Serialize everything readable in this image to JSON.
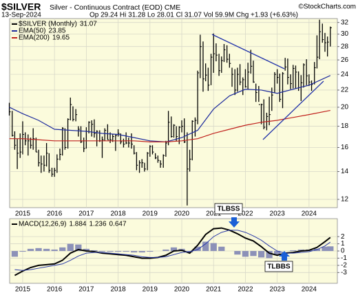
{
  "chart_data": [
    {
      "type": "ohlc",
      "title": "$SILVER",
      "subtitle": "Silver - Continuous Contract (EOD) CME",
      "date": "13-Sep-2024",
      "quote": "Op 29.24 Hi 31.28 Lo 28.01 Cl 31.07 Vol 59.9M Chg +1.93 (+6.63%)",
      "source": "©StockCharts.com",
      "log_scale": true,
      "grid": true,
      "legend": "top-left",
      "xlim": [
        2014.59,
        2024.89
      ],
      "xticks": [
        2015,
        2016,
        2017,
        2018,
        2019,
        2020,
        2021,
        2022,
        2023,
        2024
      ],
      "ylim": [
        11.46,
        32.7
      ],
      "yticks": [
        12,
        14,
        16,
        18,
        20,
        22,
        24,
        26,
        28,
        30,
        32
      ],
      "bars": {
        "name": "$SILVER (Monthly)",
        "color": "#000000",
        "x": [
          2014.58,
          2014.67,
          2014.75,
          2014.83,
          2014.92,
          2015,
          2015.08,
          2015.17,
          2015.25,
          2015.33,
          2015.42,
          2015.5,
          2015.58,
          2015.67,
          2015.75,
          2015.83,
          2015.92,
          2016,
          2016.08,
          2016.17,
          2016.25,
          2016.33,
          2016.42,
          2016.5,
          2016.58,
          2016.67,
          2016.75,
          2016.83,
          2016.92,
          2017,
          2017.08,
          2017.17,
          2017.25,
          2017.33,
          2017.42,
          2017.5,
          2017.58,
          2017.67,
          2017.75,
          2017.83,
          2017.92,
          2018,
          2018.08,
          2018.17,
          2018.25,
          2018.33,
          2018.42,
          2018.5,
          2018.58,
          2018.67,
          2018.75,
          2018.83,
          2018.92,
          2019,
          2019.08,
          2019.17,
          2019.25,
          2019.33,
          2019.42,
          2019.5,
          2019.58,
          2019.67,
          2019.75,
          2019.83,
          2019.92,
          2020,
          2020.08,
          2020.17,
          2020.25,
          2020.33,
          2020.42,
          2020.5,
          2020.58,
          2020.67,
          2020.75,
          2020.83,
          2020.92,
          2021,
          2021.08,
          2021.17,
          2021.25,
          2021.33,
          2021.42,
          2021.5,
          2021.58,
          2021.67,
          2021.75,
          2021.83,
          2021.92,
          2022,
          2022.08,
          2022.17,
          2022.25,
          2022.33,
          2022.42,
          2022.5,
          2022.58,
          2022.67,
          2022.75,
          2022.83,
          2022.92,
          2023,
          2023.08,
          2023.17,
          2023.25,
          2023.33,
          2023.42,
          2023.5,
          2023.58,
          2023.67,
          2023.75,
          2023.83,
          2023.92,
          2024,
          2024.08,
          2024.17,
          2024.25,
          2024.33,
          2024.42,
          2024.5,
          2024.58,
          2024.67
        ],
        "high": [
          20.5,
          19.6,
          17.5,
          16.8,
          17.3,
          18.5,
          17.4,
          17.2,
          16.9,
          17.8,
          16.9,
          15.8,
          15.3,
          15.3,
          16.4,
          15.5,
          14.3,
          14.3,
          15.4,
          15.9,
          17.9,
          17.8,
          18.8,
          21.1,
          20.1,
          19.8,
          18.0,
          18.0,
          16.9,
          17.9,
          18.5,
          18.6,
          18.7,
          17.6,
          17.6,
          17.0,
          17.8,
          18.2,
          17.4,
          17.2,
          17.2,
          17.7,
          17.3,
          16.8,
          17.4,
          16.9,
          17.3,
          16.2,
          15.6,
          14.9,
          15.0,
          14.7,
          15.6,
          16.2,
          16.2,
          15.5,
          15.3,
          14.9,
          15.4,
          16.6,
          19.6,
          19.0,
          18.2,
          18.0,
          18.0,
          18.6,
          18.8,
          17.4,
          15.8,
          18.6,
          18.9,
          24.5,
          29.9,
          28.8,
          25.5,
          24.9,
          26.9,
          30.1,
          28.5,
          26.9,
          26.5,
          28.4,
          28.2,
          26.9,
          24.9,
          24.7,
          24.9,
          25.4,
          23.6,
          24.7,
          25.6,
          27.5,
          25.9,
          22.8,
          22.5,
          20.4,
          20.9,
          19.4,
          21.2,
          22.3,
          24.3,
          24.7,
          24.1,
          24.3,
          26.3,
          26.2,
          24.0,
          25.3,
          25.2,
          24.4,
          23.9,
          25.5,
          26.1,
          24.0,
          23.2,
          25.7,
          29.8,
          32.5,
          31.8,
          30.2,
          29.6,
          31.28
        ],
        "low": [
          19.1,
          17.0,
          15.8,
          14.2,
          15.1,
          15.4,
          16.2,
          15.3,
          15.9,
          15.8,
          15.6,
          14.4,
          13.9,
          14.0,
          14.4,
          13.9,
          13.6,
          13.6,
          13.9,
          14.9,
          15.3,
          15.8,
          15.9,
          18.6,
          18.5,
          18.5,
          17.0,
          16.4,
          15.6,
          15.9,
          17.3,
          17.0,
          16.9,
          16.1,
          16.5,
          15.1,
          16.6,
          16.7,
          16.4,
          16.5,
          15.7,
          17.0,
          16.3,
          16.0,
          16.3,
          16.0,
          15.9,
          15.4,
          14.1,
          13.9,
          14.3,
          14.0,
          14.1,
          15.2,
          15.4,
          15.0,
          14.7,
          14.3,
          14.3,
          15.2,
          16.2,
          16.9,
          16.9,
          16.6,
          16.3,
          17.4,
          16.4,
          11.6,
          14.0,
          14.9,
          17.0,
          18.2,
          23.5,
          21.8,
          23.1,
          21.9,
          22.6,
          24.2,
          25.8,
          23.8,
          24.2,
          25.7,
          25.6,
          24.9,
          22.4,
          21.4,
          21.8,
          22.6,
          21.4,
          22.3,
          22.1,
          24.1,
          22.9,
          20.6,
          20.6,
          18.2,
          17.7,
          17.6,
          18.1,
          19.6,
          21.7,
          22.8,
          20.6,
          19.9,
          24.5,
          22.7,
          22.1,
          22.2,
          22.2,
          21.9,
          20.7,
          22.3,
          22.6,
          22.5,
          21.9,
          22.7,
          24.8,
          26.1,
          28.6,
          27.2,
          26.5,
          28.01
        ],
        "close": [
          19.5,
          17.1,
          16.2,
          15.5,
          15.6,
          17.2,
          16.6,
          16.6,
          16.2,
          16.8,
          15.6,
          14.7,
          14.6,
          14.5,
          15.5,
          14.1,
          13.8,
          14.1,
          15.0,
          15.4,
          17.8,
          16.0,
          18.7,
          20.3,
          18.7,
          19.2,
          17.7,
          16.5,
          15.9,
          17.5,
          18.4,
          18.2,
          17.3,
          17.5,
          16.6,
          16.7,
          17.6,
          16.7,
          16.7,
          17.0,
          17.1,
          17.3,
          16.5,
          16.3,
          16.4,
          16.4,
          16.3,
          15.5,
          14.5,
          14.7,
          14.7,
          14.2,
          15.5,
          16.1,
          15.6,
          15.1,
          14.9,
          14.6,
          15.3,
          16.4,
          18.4,
          17.0,
          18.1,
          17.0,
          17.9,
          18.0,
          16.5,
          14.2,
          15.0,
          18.5,
          18.6,
          24.2,
          28.0,
          23.4,
          23.9,
          22.6,
          26.4,
          26.9,
          26.7,
          24.5,
          25.9,
          27.5,
          26.1,
          25.5,
          24.0,
          22.0,
          24.0,
          23.0,
          23.3,
          22.4,
          24.3,
          25.1,
          23.0,
          21.7,
          20.3,
          20.3,
          17.9,
          19.0,
          19.2,
          21.4,
          24.0,
          23.6,
          20.9,
          24.1,
          25.0,
          23.6,
          22.8,
          24.8,
          24.3,
          22.3,
          22.9,
          25.3,
          23.8,
          23.0,
          22.7,
          24.9,
          26.4,
          30.4,
          29.1,
          28.6,
          28.7,
          31.07
        ]
      },
      "lines": [
        {
          "name": "EMA(50)",
          "color": "#1c2a9c",
          "x": [
            2014.58,
            2015,
            2015.5,
            2016,
            2016.5,
            2017,
            2017.5,
            2018,
            2018.5,
            2019,
            2019.5,
            2020,
            2020.5,
            2021,
            2021.5,
            2022,
            2022.5,
            2023,
            2023.5,
            2024,
            2024.67
          ],
          "values": [
            20.0,
            19.3,
            18.6,
            17.7,
            17.6,
            17.5,
            17.3,
            17.2,
            16.9,
            16.6,
            16.5,
            16.9,
            17.6,
            19.8,
            21.3,
            22.1,
            22.0,
            21.6,
            22.1,
            22.6,
            23.85
          ]
        },
        {
          "name": "EMA(200)",
          "color": "#c0201c",
          "x": [
            2014.58,
            2015,
            2015.5,
            2016,
            2016.5,
            2017,
            2017.5,
            2018,
            2018.5,
            2019,
            2019.5,
            2020,
            2020.5,
            2021,
            2021.5,
            2022,
            2022.5,
            2023,
            2023.5,
            2024,
            2024.67
          ],
          "values": [
            16.8,
            16.8,
            16.7,
            16.6,
            16.6,
            16.6,
            16.6,
            16.6,
            16.6,
            16.5,
            16.5,
            16.6,
            16.8,
            17.3,
            17.7,
            18.1,
            18.4,
            18.6,
            18.9,
            19.2,
            19.65
          ]
        }
      ]
    },
    {
      "type": "macd",
      "grid": true,
      "legend": "top-left",
      "annotations": [
        "TLBSS",
        "TLBBS"
      ],
      "xlim": [
        2014.59,
        2024.89
      ],
      "xticks": [
        2015,
        2016,
        2017,
        2018,
        2019,
        2020,
        2021,
        2022,
        2023,
        2024
      ],
      "ylim": [
        -4.5,
        4.5
      ],
      "yticks": [
        2,
        1,
        0,
        -1,
        -2,
        -3
      ],
      "x": [
        2014.75,
        2015,
        2015.25,
        2015.5,
        2015.75,
        2016,
        2016.25,
        2016.5,
        2016.75,
        2017,
        2017.25,
        2017.5,
        2017.75,
        2018,
        2018.25,
        2018.5,
        2018.75,
        2019,
        2019.25,
        2019.5,
        2019.75,
        2020,
        2020.25,
        2020.5,
        2020.75,
        2021,
        2021.25,
        2021.5,
        2021.75,
        2022,
        2022.25,
        2022.5,
        2022.75,
        2023,
        2023.25,
        2023.5,
        2023.75,
        2024,
        2024.25,
        2024.5,
        2024.67
      ],
      "series": [
        {
          "name": "MACD(12,26,9)",
          "color": "#000000",
          "kind": "line",
          "values": [
            -3.4,
            -2.8,
            -2.3,
            -2.0,
            -1.9,
            -1.8,
            -1.3,
            -0.3,
            0.2,
            0.0,
            -0.1,
            -0.3,
            -0.4,
            -0.5,
            -0.6,
            -0.8,
            -1.0,
            -1.0,
            -0.9,
            -0.6,
            0.0,
            0.1,
            -0.3,
            0.8,
            2.3,
            3.1,
            3.2,
            2.9,
            2.4,
            1.8,
            1.4,
            0.6,
            -0.3,
            -0.6,
            -0.3,
            -0.2,
            0.0,
            0.1,
            0.5,
            1.3,
            1.884
          ]
        },
        {
          "color": "#2a3aa8",
          "kind": "line",
          "values": [
            -2.6,
            -2.7,
            -2.6,
            -2.4,
            -2.2,
            -2.0,
            -1.8,
            -1.3,
            -0.7,
            -0.3,
            -0.2,
            -0.2,
            -0.3,
            -0.4,
            -0.5,
            -0.6,
            -0.8,
            -0.9,
            -0.9,
            -0.8,
            -0.5,
            -0.2,
            -0.1,
            0.2,
            1.0,
            2.0,
            2.6,
            2.9,
            2.9,
            2.6,
            2.1,
            1.5,
            0.7,
            0.0,
            -0.3,
            -0.3,
            -0.2,
            -0.1,
            0.2,
            0.7,
            1.236
          ]
        },
        {
          "color": "#8c91b8",
          "kind": "bar",
          "values": [
            -0.8,
            -0.1,
            0.3,
            0.4,
            0.3,
            0.2,
            0.5,
            1.0,
            0.9,
            0.3,
            0.1,
            -0.1,
            -0.1,
            -0.1,
            -0.1,
            -0.2,
            -0.2,
            -0.1,
            0.0,
            0.2,
            0.5,
            0.3,
            -0.2,
            0.6,
            1.3,
            1.1,
            0.6,
            0.0,
            -0.5,
            -0.8,
            -0.7,
            -0.9,
            -1.0,
            -0.6,
            0.0,
            0.1,
            0.2,
            0.2,
            0.3,
            0.6,
            0.647
          ]
        }
      ]
    }
  ]
}
